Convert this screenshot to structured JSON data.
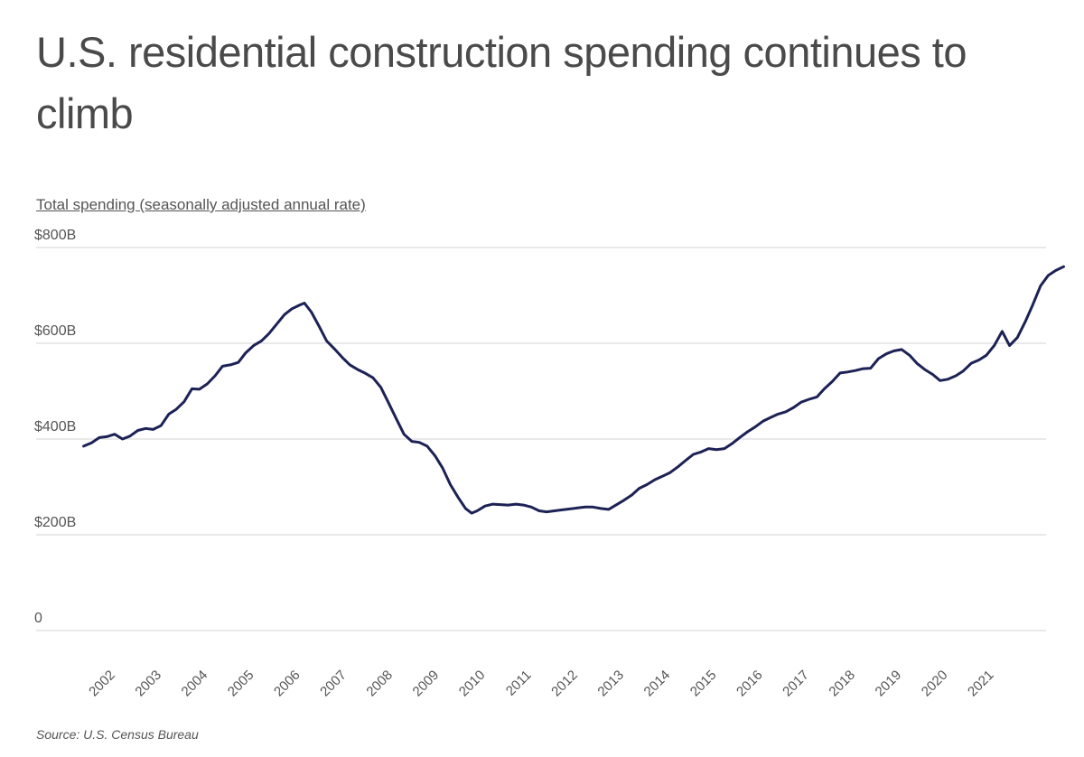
{
  "title": "U.S. residential construction spending continues to climb",
  "subtitle": "Total spending (seasonally adjusted annual rate)",
  "source": "Source:  U.S. Census Bureau",
  "colors": {
    "line": "#1c2255",
    "grid": "#dcdcdc",
    "text": "#555555"
  },
  "chart_data": {
    "type": "line",
    "title": "U.S. residential construction spending continues to climb",
    "ylabel": "Total spending (seasonally adjusted annual rate)",
    "xlabel": "",
    "ylim": [
      0,
      800
    ],
    "xlim": [
      2001.5,
      2021.8
    ],
    "grid": "horizontal",
    "y_ticks": [
      {
        "value": 0,
        "label": "0"
      },
      {
        "value": 200,
        "label": "$200B"
      },
      {
        "value": 400,
        "label": "$400B"
      },
      {
        "value": 600,
        "label": "$600B"
      },
      {
        "value": 800,
        "label": "$800B"
      }
    ],
    "x_ticks": [
      {
        "value": 2002,
        "label": "2002"
      },
      {
        "value": 2003,
        "label": "2003"
      },
      {
        "value": 2004,
        "label": "2004"
      },
      {
        "value": 2005,
        "label": "2005"
      },
      {
        "value": 2006,
        "label": "2006"
      },
      {
        "value": 2007,
        "label": "2007"
      },
      {
        "value": 2008,
        "label": "2008"
      },
      {
        "value": 2009,
        "label": "2009"
      },
      {
        "value": 2010,
        "label": "2010"
      },
      {
        "value": 2011,
        "label": "2011"
      },
      {
        "value": 2012,
        "label": "2012"
      },
      {
        "value": 2013,
        "label": "2013"
      },
      {
        "value": 2014,
        "label": "2014"
      },
      {
        "value": 2015,
        "label": "2015"
      },
      {
        "value": 2016,
        "label": "2016"
      },
      {
        "value": 2017,
        "label": "2017"
      },
      {
        "value": 2018,
        "label": "2018"
      },
      {
        "value": 2019,
        "label": "2019"
      },
      {
        "value": 2020,
        "label": "2020"
      },
      {
        "value": 2021,
        "label": "2021"
      }
    ],
    "series": [
      {
        "values": [
          [
            2001.58,
            385
          ],
          [
            2001.75,
            392
          ],
          [
            2001.92,
            403
          ],
          [
            2002.08,
            405
          ],
          [
            2002.25,
            410
          ],
          [
            2002.42,
            400
          ],
          [
            2002.58,
            406
          ],
          [
            2002.75,
            418
          ],
          [
            2002.92,
            422
          ],
          [
            2003.08,
            420
          ],
          [
            2003.25,
            428
          ],
          [
            2003.42,
            452
          ],
          [
            2003.58,
            462
          ],
          [
            2003.75,
            478
          ],
          [
            2003.92,
            505
          ],
          [
            2004.08,
            504
          ],
          [
            2004.25,
            515
          ],
          [
            2004.42,
            532
          ],
          [
            2004.58,
            552
          ],
          [
            2004.75,
            555
          ],
          [
            2004.92,
            560
          ],
          [
            2005.08,
            580
          ],
          [
            2005.25,
            595
          ],
          [
            2005.42,
            605
          ],
          [
            2005.58,
            620
          ],
          [
            2005.75,
            640
          ],
          [
            2005.92,
            660
          ],
          [
            2006.08,
            672
          ],
          [
            2006.25,
            680
          ],
          [
            2006.35,
            684
          ],
          [
            2006.5,
            665
          ],
          [
            2006.67,
            635
          ],
          [
            2006.83,
            605
          ],
          [
            2007.0,
            588
          ],
          [
            2007.17,
            570
          ],
          [
            2007.33,
            555
          ],
          [
            2007.5,
            545
          ],
          [
            2007.67,
            537
          ],
          [
            2007.83,
            528
          ],
          [
            2008.0,
            508
          ],
          [
            2008.17,
            475
          ],
          [
            2008.33,
            443
          ],
          [
            2008.5,
            410
          ],
          [
            2008.67,
            395
          ],
          [
            2008.83,
            393
          ],
          [
            2009.0,
            385
          ],
          [
            2009.17,
            365
          ],
          [
            2009.33,
            340
          ],
          [
            2009.5,
            305
          ],
          [
            2009.67,
            278
          ],
          [
            2009.83,
            255
          ],
          [
            2009.96,
            245
          ],
          [
            2010.08,
            250
          ],
          [
            2010.25,
            260
          ],
          [
            2010.42,
            264
          ],
          [
            2010.58,
            263
          ],
          [
            2010.75,
            262
          ],
          [
            2010.92,
            264
          ],
          [
            2011.08,
            262
          ],
          [
            2011.25,
            258
          ],
          [
            2011.42,
            250
          ],
          [
            2011.58,
            248
          ],
          [
            2011.75,
            250
          ],
          [
            2011.92,
            252
          ],
          [
            2012.08,
            254
          ],
          [
            2012.25,
            256
          ],
          [
            2012.42,
            258
          ],
          [
            2012.58,
            258
          ],
          [
            2012.75,
            255
          ],
          [
            2012.92,
            253
          ],
          [
            2013.08,
            262
          ],
          [
            2013.25,
            272
          ],
          [
            2013.42,
            283
          ],
          [
            2013.58,
            297
          ],
          [
            2013.75,
            305
          ],
          [
            2013.92,
            315
          ],
          [
            2014.08,
            322
          ],
          [
            2014.25,
            330
          ],
          [
            2014.42,
            342
          ],
          [
            2014.58,
            355
          ],
          [
            2014.75,
            368
          ],
          [
            2014.92,
            373
          ],
          [
            2015.08,
            380
          ],
          [
            2015.25,
            378
          ],
          [
            2015.42,
            380
          ],
          [
            2015.58,
            390
          ],
          [
            2015.75,
            403
          ],
          [
            2015.92,
            415
          ],
          [
            2016.08,
            425
          ],
          [
            2016.25,
            437
          ],
          [
            2016.42,
            445
          ],
          [
            2016.58,
            452
          ],
          [
            2016.75,
            457
          ],
          [
            2016.92,
            466
          ],
          [
            2017.08,
            477
          ],
          [
            2017.25,
            483
          ],
          [
            2017.42,
            488
          ],
          [
            2017.58,
            505
          ],
          [
            2017.75,
            520
          ],
          [
            2017.92,
            538
          ],
          [
            2018.08,
            540
          ],
          [
            2018.25,
            543
          ],
          [
            2018.42,
            547
          ],
          [
            2018.58,
            548
          ],
          [
            2018.75,
            568
          ],
          [
            2018.92,
            578
          ],
          [
            2019.08,
            584
          ],
          [
            2019.25,
            587
          ],
          [
            2019.42,
            575
          ],
          [
            2019.58,
            558
          ],
          [
            2019.75,
            545
          ],
          [
            2019.92,
            535
          ],
          [
            2020.08,
            522
          ],
          [
            2020.25,
            525
          ],
          [
            2020.42,
            532
          ],
          [
            2020.58,
            542
          ],
          [
            2020.75,
            558
          ],
          [
            2020.92,
            565
          ],
          [
            2021.08,
            575
          ],
          [
            2021.25,
            595
          ],
          [
            2021.42,
            625
          ],
          [
            2021.58,
            595
          ],
          [
            2021.75,
            612
          ],
          [
            2021.92,
            645
          ],
          [
            2022.08,
            680
          ],
          [
            2022.25,
            720
          ],
          [
            2022.42,
            742
          ],
          [
            2022.58,
            752
          ],
          [
            2022.75,
            760
          ]
        ]
      }
    ]
  }
}
